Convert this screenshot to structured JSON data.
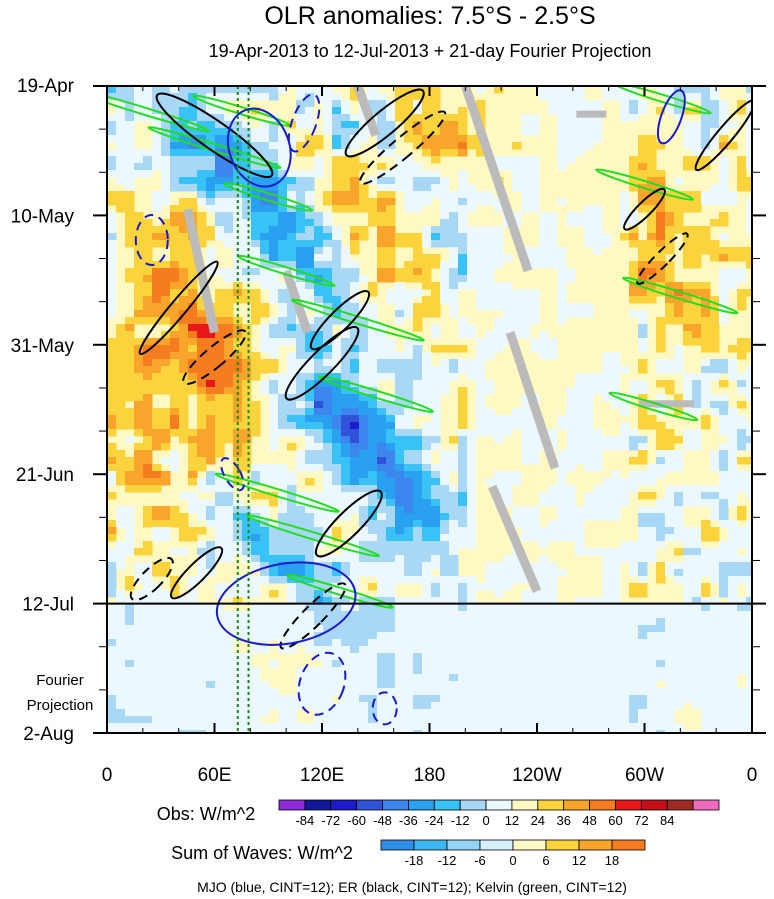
{
  "chart_data": {
    "type": "heatmap",
    "title": "OLR anomalies: 7.5°S - 2.5°S",
    "subtitle": "19-Apr-2013 to 12-Jul-2013 + 21-day Fourier Projection",
    "x_tick_labels": [
      "0",
      "60E",
      "120E",
      "180",
      "120W",
      "60W",
      "0"
    ],
    "x_ticks_lon": [
      0,
      60,
      120,
      180,
      240,
      300,
      360
    ],
    "y_tick_labels": [
      "19-Apr",
      "10-May",
      "31-May",
      "21-Jun",
      "12-Jul",
      "2-Aug"
    ],
    "y_ticks_day": [
      0,
      21,
      42,
      63,
      84,
      105
    ],
    "projection_label_1": "Fourier",
    "projection_label_2": "Projection",
    "observed_end_day": 84,
    "obs_colorbar": {
      "label": "Obs: W/m^2",
      "levels": [
        "-84",
        "-72",
        "-60",
        "-48",
        "-36",
        "-24",
        "-12",
        "0",
        "12",
        "24",
        "36",
        "48",
        "60",
        "72",
        "84"
      ],
      "colors": [
        "#8f2bd8",
        "#13179a",
        "#1d1ccc",
        "#3052d9",
        "#3d86ee",
        "#2aa0f0",
        "#39c2f5",
        "#a9d8f7",
        "#ecf8ff",
        "#fff8c0",
        "#fbd33c",
        "#f9a52c",
        "#f57d20",
        "#e8171b",
        "#c50f16",
        "#9e2a26",
        "#f06bbd"
      ]
    },
    "waves_colorbar": {
      "label": "Sum of Waves: W/m^2",
      "levels": [
        "-18",
        "-12",
        "-6",
        "0",
        "6",
        "12",
        "18"
      ],
      "colors": [
        "#2f8de8",
        "#3db7f2",
        "#92d3f6",
        "#d6f0fb",
        "#fff7c4",
        "#fbd33c",
        "#f9a52c",
        "#f57d20"
      ]
    },
    "footer": "MJO (blue, CINT=12); ER (black, CINT=12); Kelvin (green, CINT=12)",
    "contour_colors": {
      "MJO": "#1a1acc",
      "ER": "#000000",
      "Kelvin": "#22dd22"
    },
    "marker_line_lon": [
      73,
      79
    ]
  }
}
